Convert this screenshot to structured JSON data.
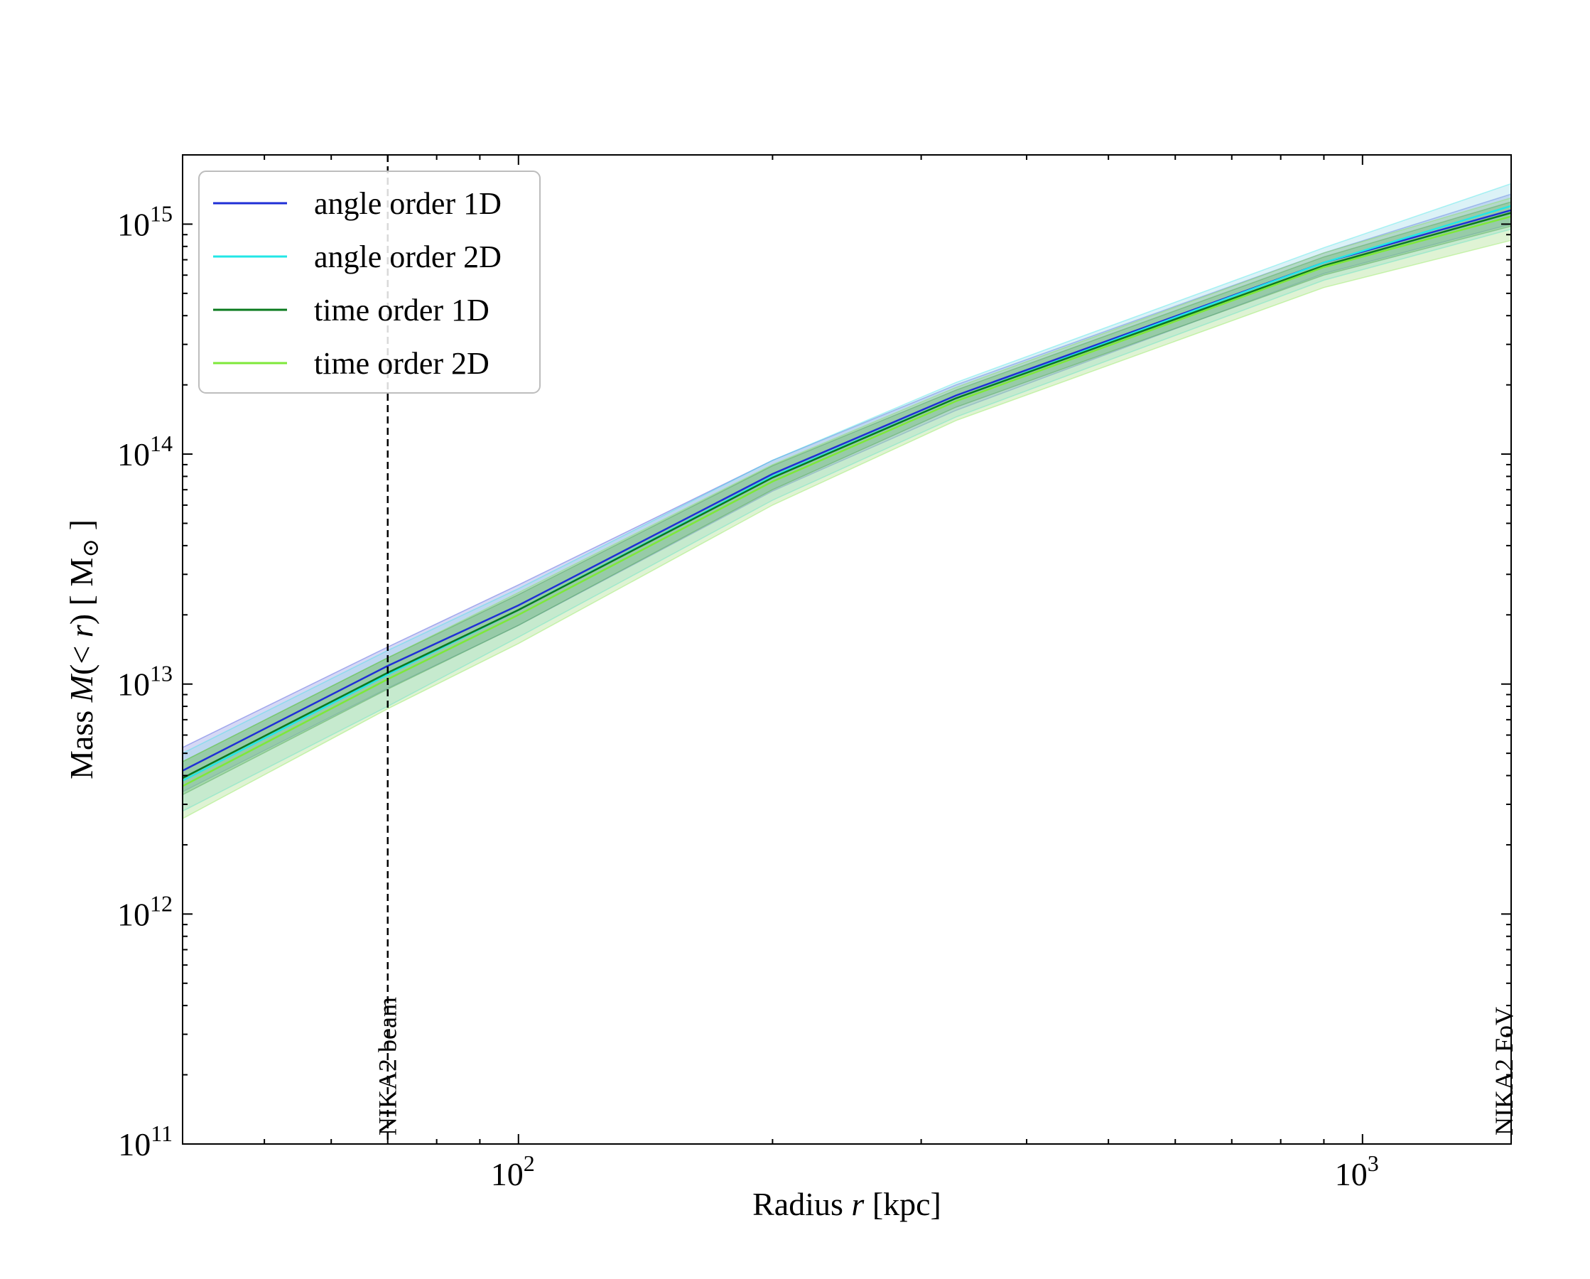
{
  "chart_data": {
    "type": "line",
    "xlabel_prefix": "Radius ",
    "xlabel_var": "r",
    "xlabel_unit": " [kpc]",
    "ylabel_prefix": "Mass ",
    "ylabel_var": "M",
    "ylabel_mid": "(< ",
    "ylabel_var2": "r",
    "ylabel_end": ") [ M",
    "ylabel_sub": "⊙",
    "ylabel_close": " ]",
    "xscale": "log",
    "yscale": "log",
    "xlim": [
      40,
      1500
    ],
    "ylim": [
      100000000000.0,
      2000000000000000.0
    ],
    "x_ticks": [
      {
        "value": 100,
        "base": "10",
        "exp": "2"
      },
      {
        "value": 1000,
        "base": "10",
        "exp": "3"
      }
    ],
    "y_ticks": [
      {
        "value": 100000000000.0,
        "base": "10",
        "exp": "11"
      },
      {
        "value": 1000000000000.0,
        "base": "10",
        "exp": "12"
      },
      {
        "value": 10000000000000.0,
        "base": "10",
        "exp": "13"
      },
      {
        "value": 100000000000000.0,
        "base": "10",
        "exp": "14"
      },
      {
        "value": 1000000000000000.0,
        "base": "10",
        "exp": "15"
      }
    ],
    "grid": false,
    "legend_position": "top-left",
    "series": [
      {
        "name": "angle order 1D",
        "color": "#1f2fd6",
        "band_color": "#7b86e0",
        "x": [
          40,
          70,
          100,
          200,
          330,
          900,
          1500
        ],
        "y": [
          4200000000000.0,
          12000000000000.0,
          22000000000000.0,
          82000000000000.0,
          180000000000000.0,
          680000000000000.0,
          1150000000000000.0
        ],
        "lower": [
          3400000000000.0,
          9600000000000.0,
          18000000000000.0,
          69000000000000.0,
          155000000000000.0,
          610000000000000.0,
          1000000000000000.0
        ],
        "upper": [
          5300000000000.0,
          14500000000000.0,
          27000000000000.0,
          94000000000000.0,
          200000000000000.0,
          750000000000000.0,
          1350000000000000.0
        ]
      },
      {
        "name": "angle order 2D",
        "color": "#22e6e6",
        "band_color": "#8fd6e6",
        "x": [
          40,
          70,
          100,
          200,
          330,
          900,
          1500
        ],
        "y": [
          3800000000000.0,
          11000000000000.0,
          21000000000000.0,
          80000000000000.0,
          175000000000000.0,
          680000000000000.0,
          1200000000000000.0
        ],
        "lower": [
          2800000000000.0,
          8000000000000.0,
          16000000000000.0,
          63000000000000.0,
          145000000000000.0,
          570000000000000.0,
          950000000000000.0
        ],
        "upper": [
          5000000000000.0,
          14000000000000.0,
          26000000000000.0,
          94000000000000.0,
          205000000000000.0,
          790000000000000.0,
          1500000000000000.0
        ]
      },
      {
        "name": "time order 1D",
        "color": "#0a7a1e",
        "band_color": "#3f9e55",
        "x": [
          40,
          70,
          100,
          200,
          330,
          900,
          1500
        ],
        "y": [
          3900000000000.0,
          11200000000000.0,
          21000000000000.0,
          79000000000000.0,
          175000000000000.0,
          660000000000000.0,
          1120000000000000.0
        ],
        "lower": [
          3300000000000.0,
          9500000000000.0,
          18000000000000.0,
          70000000000000.0,
          160000000000000.0,
          600000000000000.0,
          980000000000000.0
        ],
        "upper": [
          4600000000000.0,
          13000000000000.0,
          24500000000000.0,
          89000000000000.0,
          190000000000000.0,
          720000000000000.0,
          1250000000000000.0
        ]
      },
      {
        "name": "time order 2D",
        "color": "#7ee83a",
        "band_color": "#9bd97a",
        "x": [
          40,
          70,
          100,
          200,
          330,
          900,
          1500
        ],
        "y": [
          3600000000000.0,
          10500000000000.0,
          20000000000000.0,
          76000000000000.0,
          170000000000000.0,
          650000000000000.0,
          1080000000000000.0
        ],
        "lower": [
          2600000000000.0,
          7800000000000.0,
          15000000000000.0,
          60000000000000.0,
          140000000000000.0,
          530000000000000.0,
          850000000000000.0
        ],
        "upper": [
          4600000000000.0,
          13000000000000.0,
          25000000000000.0,
          90000000000000.0,
          195000000000000.0,
          750000000000000.0,
          1300000000000000.0
        ]
      }
    ],
    "annotations": [
      {
        "text": "NIKA2 beam",
        "x": 70,
        "line": true
      },
      {
        "text": "NIKA2 FoV",
        "x": 1500,
        "line": false
      }
    ]
  }
}
